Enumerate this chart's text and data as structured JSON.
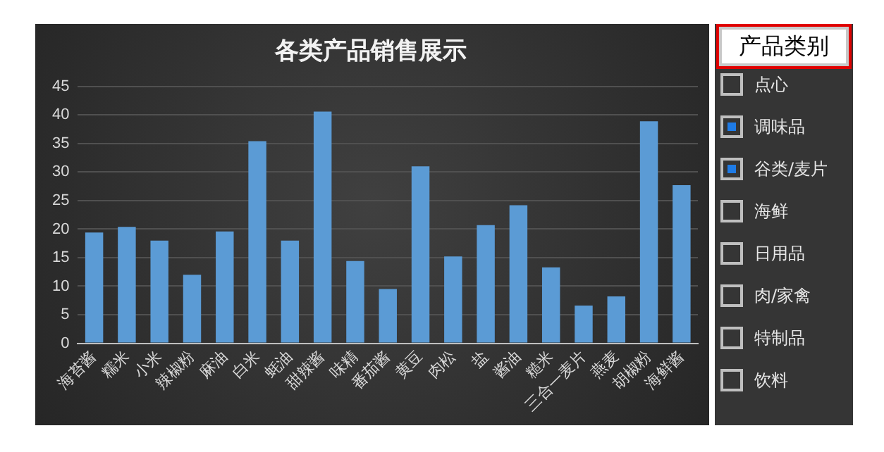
{
  "chart_data": [
    {
      "type": "bar",
      "title": "各类产品销售展示",
      "categories": [
        "海苔酱",
        "糯米",
        "小米",
        "辣椒粉",
        "麻油",
        "白米",
        "蚝油",
        "甜辣酱",
        "味精",
        "番茄酱",
        "黄豆",
        "肉松",
        "盐",
        "酱油",
        "糙米",
        "三合一麦片",
        "燕麦",
        "胡椒粉",
        "海鲜酱"
      ],
      "values": [
        19.4,
        20.4,
        18.0,
        12.0,
        19.6,
        35.4,
        18.0,
        40.6,
        14.4,
        9.5,
        31.0,
        15.2,
        20.7,
        24.2,
        13.3,
        6.6,
        8.2,
        38.9,
        27.7
      ],
      "color": "#5b9bd5",
      "ylim": [
        0,
        45
      ],
      "yticks": [
        0,
        5,
        10,
        15,
        20,
        25,
        30,
        35,
        40,
        45
      ],
      "grid": "y",
      "legend": false
    },
    {
      "type": "other",
      "title": "产品类别",
      "categories": [
        "点心",
        "调味品",
        "谷类/麦片",
        "海鲜",
        "日用品",
        "肉/家禽",
        "特制品",
        "饮料"
      ],
      "colors": [
        null,
        "#1e7be6",
        "#1e7be6",
        null,
        null,
        null,
        null,
        null
      ]
    }
  ]
}
